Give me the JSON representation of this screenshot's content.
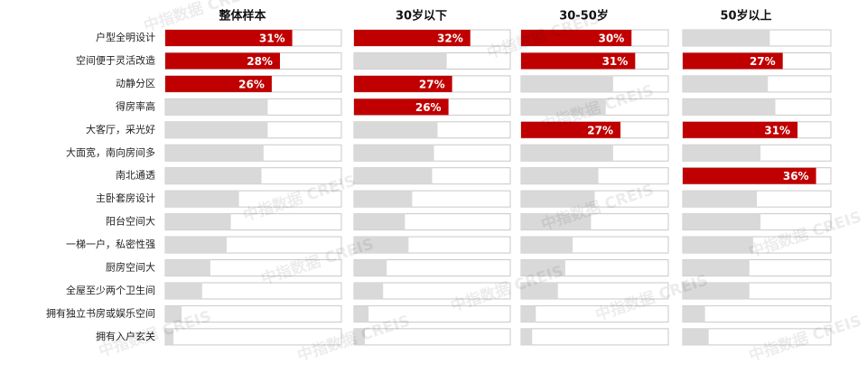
{
  "chart_data": {
    "type": "bar",
    "categories": [
      "户型全明设计",
      "空间便于灵活改造",
      "动静分区",
      "得房率高",
      "大客厅，采光好",
      "大面宽，南向房间多",
      "南北通透",
      "主卧套房设计",
      "阳台空间大",
      "一梯一户，私密性强",
      "厨房空间大",
      "全屋至少两个卫生间",
      "拥有独立书房或娱乐空间",
      "拥有入户玄关"
    ],
    "color": "#d9d9d9",
    "highlight_color": "#c00000",
    "watermark": "中指数据 CREIS",
    "panels": [
      {
        "title": "整体样本",
        "xlim": [
          0,
          43
        ],
        "values": [
          31,
          28,
          26,
          25,
          25,
          24,
          23.5,
          18,
          16,
          15,
          11,
          9,
          4,
          2
        ],
        "value_labels": [
          "31%",
          "28%",
          "26%",
          null,
          null,
          null,
          null,
          null,
          null,
          null,
          null,
          null,
          null,
          null
        ]
      },
      {
        "title": "30岁以下",
        "xlim": [
          0,
          43
        ],
        "values": [
          32,
          25.5,
          27,
          26,
          23,
          22,
          21.5,
          16,
          14,
          15,
          9,
          8,
          4,
          3
        ],
        "value_labels": [
          "32%",
          null,
          "27%",
          "26%",
          null,
          null,
          null,
          null,
          null,
          null,
          null,
          null,
          null,
          null
        ]
      },
      {
        "title": "30-50岁",
        "xlim": [
          0,
          40
        ],
        "values": [
          30,
          31,
          25,
          23,
          27,
          25,
          21,
          20,
          19,
          14,
          12,
          10,
          4,
          3
        ],
        "value_labels": [
          "30%",
          "31%",
          null,
          null,
          "27%",
          null,
          null,
          null,
          null,
          null,
          null,
          null,
          null,
          null
        ]
      },
      {
        "title": "50岁以上",
        "xlim": [
          0,
          40
        ],
        "values": [
          23.5,
          27,
          23,
          25,
          31,
          21,
          36,
          20,
          21,
          19,
          18,
          18,
          6,
          7
        ],
        "value_labels": [
          null,
          "27%",
          null,
          null,
          "31%",
          null,
          "36%",
          null,
          null,
          null,
          null,
          null,
          null,
          null
        ]
      }
    ]
  }
}
